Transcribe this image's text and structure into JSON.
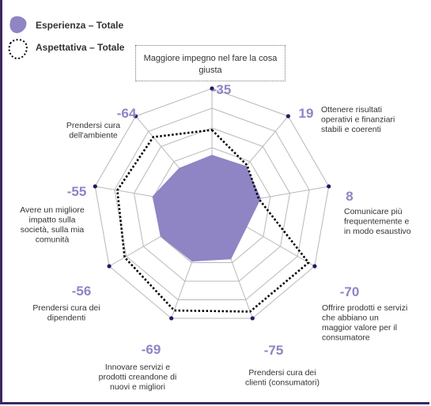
{
  "legend": {
    "experience": "Esperienza – Totale",
    "expectation": "Aspettativa – Totale"
  },
  "callout_text": "Maggiore impegno nel fare la cosa giusta",
  "colors": {
    "experience_fill": "#8f84c4",
    "expectation_stroke": "#000000",
    "difference_label": "#8f84c4",
    "grid": "#b8b8b8",
    "vertex_dot": "#1f1a66",
    "frame": "#3b2a5e"
  },
  "chart_data": {
    "type": "radar",
    "rings": 6,
    "max": 10,
    "categories": [
      "Maggiore impegno nel fare la cosa giusta",
      "Ottenere risultati operativi e finanziari stabili e coerenti",
      "Comunicare più frequentemente e in modo esaustivo",
      "Offrire prodotti e servizi che abbiano un maggior valore per il consumatore",
      "Prendersi cura dei clienti (consumatori)",
      "Innovare servizi e prodotti creandone di nuovi e migliori",
      "Prendersi cura dei dipendenti",
      "Avere un migliore impatto sulla società, sulla mia comunità",
      "Prendersi cura dell'ambiente"
    ],
    "axis_labels": [
      [
        "Maggiore impegno nel fare",
        "la cosa giusta"
      ],
      [
        "Ottenere risultati",
        "operativi e finanziari",
        "stabili e coerenti"
      ],
      [
        "Comunicare più",
        "frequentemente e",
        "in modo esaustivo"
      ],
      [
        "Offrire prodotti e servizi",
        "che abbiano un",
        "maggior valore per il",
        "consumatore"
      ],
      [
        "Prendersi cura dei",
        "clienti (consumatori)"
      ],
      [
        "Innovare servizi e",
        "prodotti creandone di",
        "nuovi e migliori"
      ],
      [
        "Prendersi cura dei",
        "dipendenti"
      ],
      [
        "Avere un migliore",
        "impatto sulla",
        "società, sulla mia",
        "comunità"
      ],
      [
        "Prendersi cura",
        "dell'ambiente"
      ]
    ],
    "difference_labels": [
      "-35",
      "19",
      "8",
      "-70",
      "-75",
      "-69",
      "-56",
      "-55",
      "-64"
    ],
    "series": [
      {
        "name": "Esperienza – Totale",
        "values": [
          4.4,
          4.5,
          4.2,
          3.4,
          4.7,
          4.9,
          5.0,
          5.1,
          4.3
        ]
      },
      {
        "name": "Aspettativa – Totale",
        "values": [
          6.5,
          4.6,
          4.0,
          9.4,
          9.4,
          9.3,
          8.5,
          8.1,
          7.7
        ]
      }
    ]
  }
}
